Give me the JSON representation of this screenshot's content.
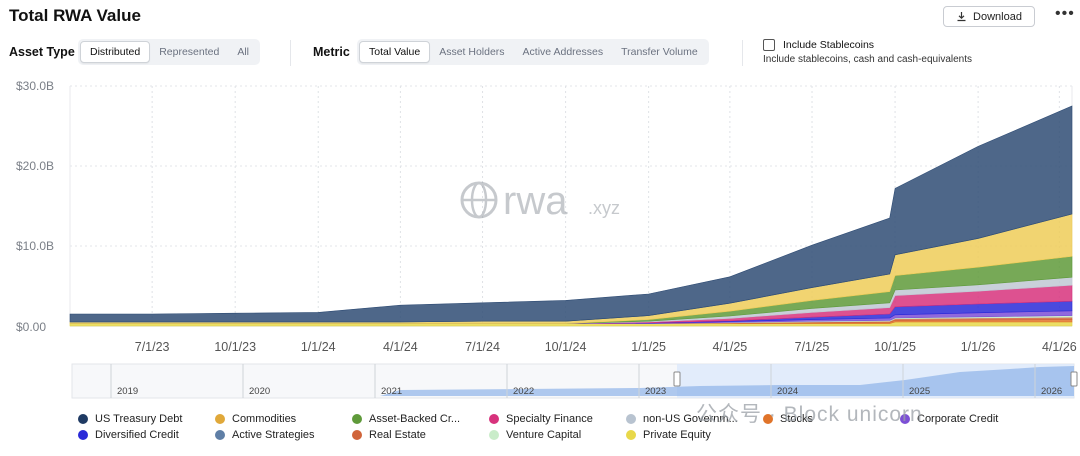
{
  "header": {
    "title": "Total RWA Value",
    "download_label": "Download",
    "more_label": "•••"
  },
  "asset_type": {
    "label": "Asset Type",
    "options": [
      "Distributed",
      "Represented",
      "All"
    ],
    "selected": "Distributed"
  },
  "metric": {
    "label": "Metric",
    "options": [
      "Total Value",
      "Asset Holders",
      "Active Addresses",
      "Transfer Volume"
    ],
    "selected": "Total Value"
  },
  "stablecoins": {
    "checked": false,
    "label": "Include Stablecoins",
    "description": "Include stablecoins, cash and cash-equivalents"
  },
  "watermark": {
    "logo_text": "rwa",
    "logo_suffix": ".xyz",
    "overlay_text": "公众号 · Block unicorn"
  },
  "navigator": {
    "year_labels": [
      "2019",
      "2020",
      "2021",
      "2022",
      "2023",
      "2024",
      "2025",
      "2026"
    ]
  },
  "chart_data": {
    "type": "area",
    "title": "Total RWA Value",
    "stacked": true,
    "y_tick_labels": [
      "$30.0B",
      "$20.0B",
      "$10.0B",
      "$0.00"
    ],
    "y_ticks": [
      30,
      20,
      10,
      0
    ],
    "ylim": [
      0,
      30
    ],
    "y_unit": "B USD",
    "x_tick_labels": [
      "7/1/23",
      "10/1/23",
      "1/1/24",
      "4/1/24",
      "7/1/24",
      "10/1/24",
      "1/1/25",
      "4/1/25",
      "7/1/25",
      "10/1/25",
      "1/1/26",
      "4/1/26"
    ],
    "x": [
      "2023-04-01",
      "2023-07-01",
      "2023-10-01",
      "2024-01-01",
      "2024-04-01",
      "2024-07-01",
      "2024-10-01",
      "2025-01-01",
      "2025-04-01",
      "2025-07-01",
      "2025-09-25",
      "2025-10-01",
      "2026-01-01",
      "2026-04-15"
    ],
    "grid": true,
    "legend_position": "bottom",
    "series": [
      {
        "name": "Private Equity",
        "color": "#e8d84a",
        "values": [
          0.3,
          0.3,
          0.3,
          0.3,
          0.3,
          0.3,
          0.3,
          0.3,
          0.3,
          0.3,
          0.3,
          0.5,
          0.5,
          0.5
        ]
      },
      {
        "name": "Stocks",
        "color": "#e0742a",
        "values": [
          0,
          0,
          0,
          0,
          0,
          0,
          0,
          0,
          0.05,
          0.1,
          0.15,
          0.2,
          0.25,
          0.3
        ]
      },
      {
        "name": "Real Estate",
        "color": "#d0643a",
        "values": [
          0,
          0,
          0,
          0,
          0,
          0,
          0,
          0,
          0.05,
          0.1,
          0.15,
          0.2,
          0.25,
          0.3
        ]
      },
      {
        "name": "Venture Capital",
        "color": "#c9ecc9",
        "values": [
          0,
          0,
          0,
          0,
          0,
          0,
          0,
          0,
          0.05,
          0.1,
          0.1,
          0.1,
          0.15,
          0.2
        ]
      },
      {
        "name": "Corporate Credit",
        "color": "#7c4fd6",
        "values": [
          0,
          0,
          0,
          0,
          0,
          0,
          0,
          0.05,
          0.1,
          0.2,
          0.3,
          0.4,
          0.5,
          0.6
        ]
      },
      {
        "name": "Diversified Credit",
        "color": "#2a2ad8",
        "values": [
          0,
          0,
          0,
          0,
          0,
          0,
          0,
          0.05,
          0.1,
          0.3,
          0.5,
          1.0,
          1.1,
          1.2
        ]
      },
      {
        "name": "Specialty Finance",
        "color": "#d7327c",
        "values": [
          0,
          0,
          0,
          0,
          0,
          0,
          0,
          0.1,
          0.3,
          0.6,
          0.8,
          1.4,
          1.6,
          2.0
        ]
      },
      {
        "name": "non-US Government Debt",
        "color": "#c0c8d4",
        "values": [
          0,
          0,
          0,
          0,
          0,
          0,
          0,
          0.1,
          0.3,
          0.5,
          0.6,
          0.7,
          0.8,
          1.0
        ]
      },
      {
        "name": "Asset-Backed Credit",
        "color": "#5f9a3a",
        "values": [
          0,
          0,
          0,
          0,
          0,
          0,
          0,
          0.2,
          0.6,
          1.0,
          1.4,
          1.8,
          2.2,
          2.6
        ]
      },
      {
        "name": "Commodities",
        "color": "#efcc58",
        "values": [
          0.2,
          0.2,
          0.2,
          0.2,
          0.2,
          0.3,
          0.3,
          0.5,
          1.0,
          1.6,
          2.2,
          2.6,
          3.6,
          5.3
        ]
      },
      {
        "name": "Active Strategies",
        "color": "#5f7fa6",
        "values": [
          0,
          0,
          0,
          0,
          0,
          0,
          0,
          0,
          0,
          0,
          0,
          0,
          0,
          0
        ]
      },
      {
        "name": "US Treasury Debt",
        "color": "#2f4c74",
        "values": [
          1.0,
          1.0,
          1.1,
          1.2,
          2.1,
          2.3,
          2.6,
          2.7,
          3.3,
          5.3,
          7.0,
          8.3,
          11.5,
          13.5
        ]
      }
    ]
  }
}
